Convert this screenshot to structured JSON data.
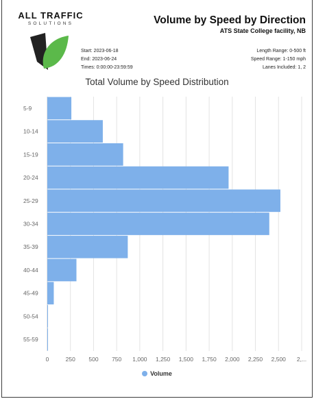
{
  "brand": {
    "name": "ALL TRAFFIC",
    "sub": "SOLUTIONS"
  },
  "report": {
    "title": "Volume by Speed by Direction",
    "subtitle": "ATS State College facility, NB",
    "start": "Start: 2023-06-18",
    "end": "End: 2023-06-24",
    "times": "Times: 0:00:00-23:59:59",
    "length_range": "Length Range: 0-500 ft",
    "speed_range": "Speed Range: 1-150 mph",
    "lanes": "Lanes Included: 1, 2"
  },
  "colors": {
    "bar": "#7eb0ea",
    "grid": "#e3e3e3",
    "axis_text": "#666666",
    "logo_green": "#5bb94a",
    "logo_dark": "#222222"
  },
  "chart_data": {
    "type": "bar",
    "orientation": "horizontal",
    "title": "Total Volume by Speed Distribution",
    "categories": [
      "5-9",
      "10-14",
      "15-19",
      "20-24",
      "25-29",
      "30-34",
      "35-39",
      "40-44",
      "45-49",
      "50-54",
      "55-59"
    ],
    "series": [
      {
        "name": "Volume",
        "values": [
          260,
          600,
          820,
          1960,
          2520,
          2400,
          870,
          315,
          70,
          2,
          5
        ]
      }
    ],
    "xlim": [
      0,
      2750
    ],
    "x_ticks": [
      "0",
      "250",
      "500",
      "750",
      "1,000",
      "1,250",
      "1,500",
      "1,750",
      "2,000",
      "2,250",
      "2,500",
      "2,..."
    ],
    "grid": true,
    "legend": "bottom"
  }
}
